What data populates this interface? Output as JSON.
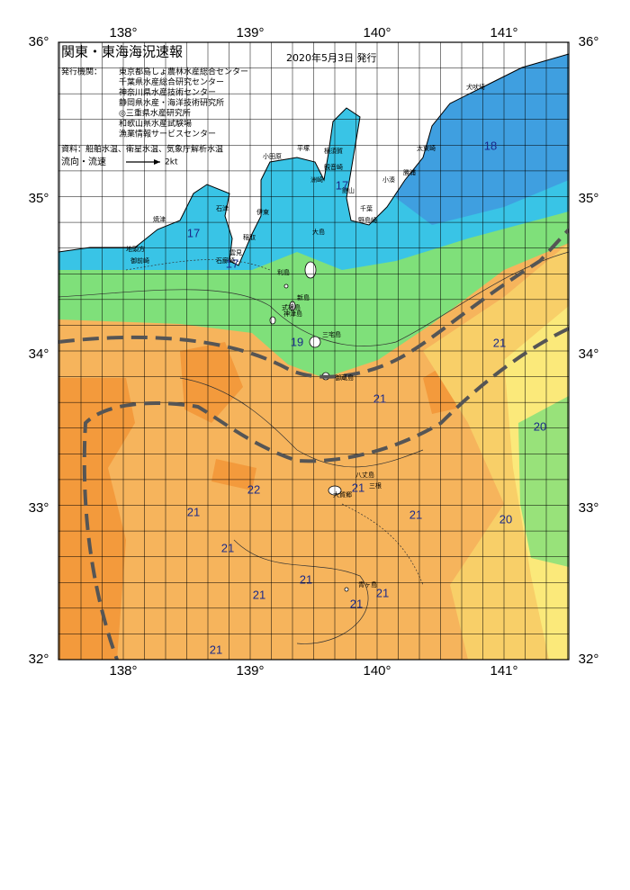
{
  "header": {
    "title": "関東・東海海況速報",
    "date": "2020年5月3日 発行"
  },
  "issuers": {
    "label": "発行機関：",
    "names": [
      "東京都島しょ農林水産総合センター",
      "千葉県水産総合研究センター",
      "神奈川県水産技術センター",
      "静岡県水産・海洋技術研究所",
      "◎三重県水産研究所",
      "和歌山県水産試験場",
      "漁業情報サービスセンター"
    ]
  },
  "source": "資料：船舶水温、衛星水温、気象庁解析水温",
  "legend": {
    "label": "流向・流速",
    "speed": "2kt"
  },
  "axes": {
    "lon_labels": [
      "138°",
      "139°",
      "140°",
      "141°"
    ],
    "lat_labels": [
      "36°",
      "35°",
      "34°",
      "33°",
      "32°"
    ]
  },
  "places": [
    "焼津",
    "石津",
    "地頭方",
    "御前崎",
    "伊東",
    "稲取",
    "雲見",
    "石廊崎",
    "小田原",
    "平塚",
    "横須賀",
    "観音崎",
    "洲崎",
    "館山",
    "千葉",
    "野島崎",
    "大島",
    "利島",
    "新島",
    "式根島",
    "神津島",
    "三宅島",
    "御蔵島",
    "犬吠埼",
    "太東崎",
    "勝浦",
    "小湊",
    "八丈島",
    "三根",
    "大賀郷",
    "青ヶ島"
  ],
  "temperatures": [
    17,
    17,
    17,
    18,
    19,
    21,
    21,
    20,
    22,
    21,
    21,
    21,
    20,
    21,
    21,
    21,
    21,
    21,
    21
  ]
}
